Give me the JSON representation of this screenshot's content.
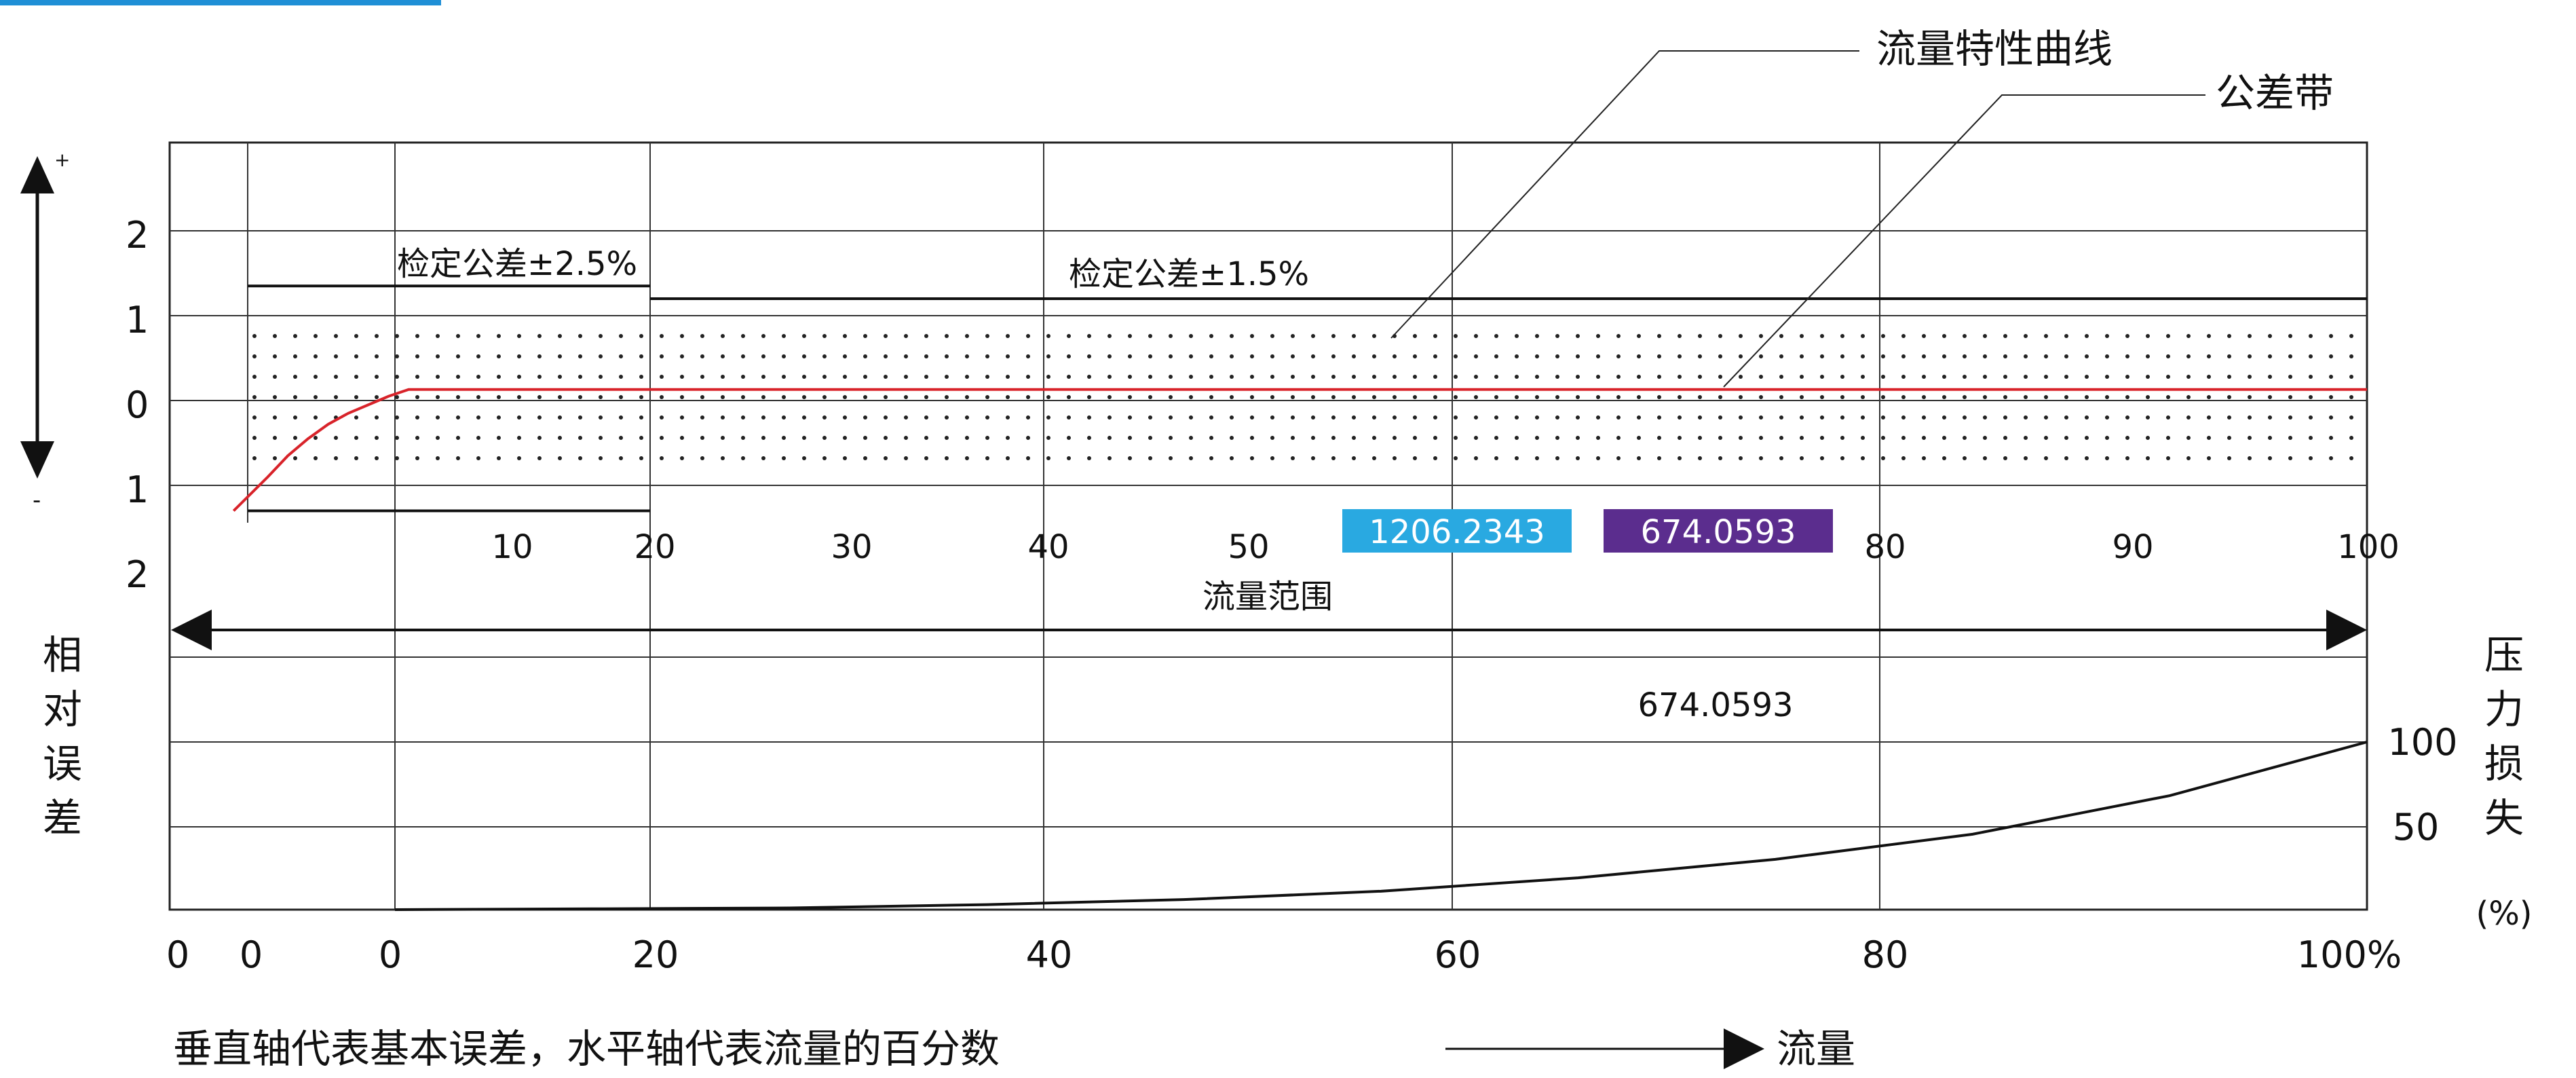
{
  "top_strip_color": "#1f8fd6",
  "labels": {
    "flow_characteristic_curve": "流量特性曲线",
    "tolerance_band": "公差带",
    "verification_tolerance_low": "检定公差±2.5%",
    "verification_tolerance_high": "检定公差±1.5%",
    "flow_range": "流量范围",
    "relative_error_vertical": "相对误差",
    "pressure_loss_vertical": "压力损失",
    "pressure_loss_unit": "(%)",
    "plus_sign": "+",
    "minus_sign": "-",
    "caption": "垂直轴代表基本误差，水平轴代表流量的百分数",
    "flow_arrow_label": "流量",
    "center_value": "674.0593"
  },
  "badges": [
    {
      "text": "1206.2343",
      "color": "#29a9e1"
    },
    {
      "text": "674.0593",
      "color": "#5b2d8e"
    }
  ],
  "upper_y_ticks": [
    "2",
    "1",
    "0",
    "1",
    "2"
  ],
  "upper_x_ticks": [
    "10",
    "20",
    "30",
    "40",
    "50",
    "80",
    "90",
    "100"
  ],
  "lower_y_ticks": [
    "100",
    "50"
  ],
  "lower_x_ticks": [
    "0",
    "0",
    "0",
    "20",
    "40",
    "60",
    "80",
    "100%"
  ],
  "chart_data": [
    {
      "type": "line",
      "name": "upper-error-chart",
      "xlim": [
        0,
        100
      ],
      "ylim": [
        -2,
        2
      ],
      "tolerance_low_flow": {
        "x_range": [
          0,
          20
        ],
        "plus": 1.35,
        "minus": -1.3
      },
      "tolerance_high_flow": {
        "x_range": [
          20,
          100
        ],
        "plus": 1.2
      },
      "tolerance_band": {
        "x_range": [
          0,
          100
        ],
        "upper": 0.9,
        "lower": -0.85
      },
      "series": [
        {
          "color": "#d8232a",
          "x": [
            -0.7,
            1,
            2,
            3,
            4,
            5,
            6,
            7,
            8,
            100
          ],
          "y": [
            -1.3,
            -0.9,
            -0.65,
            -0.45,
            -0.28,
            -0.15,
            -0.05,
            0.05,
            0.13,
            0.13
          ]
        }
      ]
    },
    {
      "type": "line",
      "name": "lower-pressure-loss-chart",
      "xlim": [
        0,
        100
      ],
      "ylim": [
        0,
        200
      ],
      "series": [
        {
          "color": "#111111",
          "x": [
            0,
            10,
            20,
            30,
            40,
            50,
            60,
            70,
            80,
            90,
            100
          ],
          "y": [
            0,
            0.5,
            1,
            3,
            6,
            11,
            19,
            30,
            45,
            68,
            100
          ]
        }
      ]
    }
  ]
}
